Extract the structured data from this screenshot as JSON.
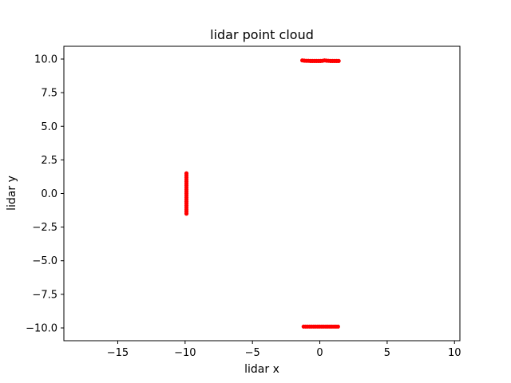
{
  "chart_data": {
    "type": "scatter",
    "title": "lidar point cloud",
    "xlabel": "lidar x",
    "ylabel": "lidar y",
    "xlim": [
      -19,
      10.4
    ],
    "ylim": [
      -10.95,
      10.95
    ],
    "x_ticks": [
      -15,
      -10,
      -5,
      0,
      5,
      10
    ],
    "x_tick_labels": [
      "−15",
      "−10",
      "−5",
      "0",
      "5",
      "10"
    ],
    "y_ticks": [
      10.0,
      7.5,
      5.0,
      2.5,
      0.0,
      -2.5,
      -5.0,
      -7.5,
      -10.0
    ],
    "y_tick_labels": [
      "10.0",
      "7.5",
      "5.0",
      "2.5",
      "0.0",
      "−2.5",
      "−5.0",
      "−7.5",
      "−10.0"
    ],
    "grid": false,
    "legend": "none",
    "series": [
      {
        "color": "#ff0000",
        "points": [
          [
            -1.3,
            9.9
          ],
          [
            -1.15,
            9.88
          ],
          [
            -1.0,
            9.87
          ],
          [
            -0.85,
            9.87
          ],
          [
            -0.7,
            9.86
          ],
          [
            -0.55,
            9.86
          ],
          [
            -0.4,
            9.86
          ],
          [
            -0.25,
            9.86
          ],
          [
            -0.1,
            9.86
          ],
          [
            0.05,
            9.86
          ],
          [
            0.2,
            9.87
          ],
          [
            0.35,
            9.9
          ],
          [
            0.5,
            9.88
          ],
          [
            0.65,
            9.87
          ],
          [
            0.8,
            9.86
          ],
          [
            0.95,
            9.86
          ],
          [
            1.1,
            9.86
          ],
          [
            1.25,
            9.86
          ],
          [
            1.4,
            9.86
          ],
          [
            -1.2,
            -9.9
          ],
          [
            -1.05,
            -9.9
          ],
          [
            -0.9,
            -9.9
          ],
          [
            -0.75,
            -9.9
          ],
          [
            -0.6,
            -9.9
          ],
          [
            -0.45,
            -9.9
          ],
          [
            -0.3,
            -9.9
          ],
          [
            -0.15,
            -9.9
          ],
          [
            0.0,
            -9.9
          ],
          [
            0.15,
            -9.9
          ],
          [
            0.3,
            -9.9
          ],
          [
            0.45,
            -9.9
          ],
          [
            0.6,
            -9.9
          ],
          [
            0.75,
            -9.9
          ],
          [
            0.9,
            -9.9
          ],
          [
            1.05,
            -9.9
          ],
          [
            1.2,
            -9.9
          ],
          [
            1.35,
            -9.9
          ],
          [
            -9.9,
            1.5
          ],
          [
            -9.9,
            1.35
          ],
          [
            -9.9,
            1.2
          ],
          [
            -9.9,
            1.05
          ],
          [
            -9.9,
            0.9
          ],
          [
            -9.9,
            0.75
          ],
          [
            -9.9,
            0.6
          ],
          [
            -9.9,
            0.45
          ],
          [
            -9.9,
            0.3
          ],
          [
            -9.9,
            0.15
          ],
          [
            -9.9,
            0.0
          ],
          [
            -9.9,
            -0.15
          ],
          [
            -9.9,
            -0.3
          ],
          [
            -9.9,
            -0.45
          ],
          [
            -9.9,
            -0.6
          ],
          [
            -9.9,
            -0.75
          ],
          [
            -9.9,
            -0.9
          ],
          [
            -9.9,
            -1.05
          ],
          [
            -9.9,
            -1.2
          ],
          [
            -9.9,
            -1.35
          ],
          [
            -9.9,
            -1.5
          ]
        ]
      }
    ]
  }
}
